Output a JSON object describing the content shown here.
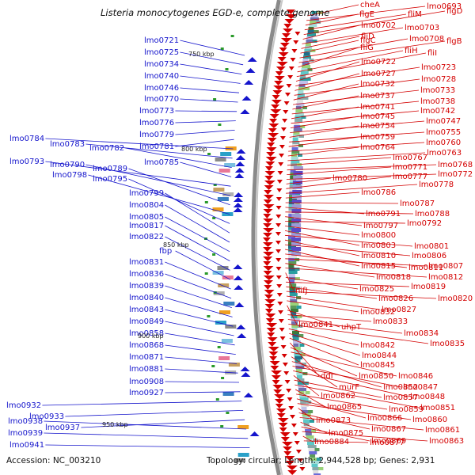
{
  "title": "Listeria monocytogenes EGD-e, complete genome",
  "footer": {
    "accession": "Accession: NC_003210",
    "topology": "Topology: circular; Length: 2,944,528 bp; Genes: 2,931"
  },
  "colors": {
    "left_gene_color": "#1515cc",
    "right_gene_color": "#d40000",
    "backbone": "#888888"
  },
  "kbp_labels": [
    "750 kbp",
    "800 kbp",
    "850 kbp",
    "900 kbp",
    "950 kbp"
  ],
  "left_genes": [
    "lmo0721",
    "lmo0725",
    "lmo0734",
    "lmo0740",
    "lmo0746",
    "lmo0770",
    "lmo0773",
    "lmo0776",
    "lmo0779",
    "lmo0781",
    "lmo0784",
    "lmo0783",
    "lmo0782",
    "lmo0785",
    "lmo0793",
    "lmo0790",
    "lmo0789",
    "lmo0798",
    "lmo0795",
    "lmo0799",
    "lmo0804",
    "lmo0805",
    "lmo0817",
    "lmo0822",
    "fbp",
    "lmo0831",
    "lmo0836",
    "lmo0839",
    "lmo0840",
    "lmo0843",
    "lmo0849",
    "lmo0858",
    "lmo0868",
    "lmo0871",
    "lmo0881",
    "lmo0908",
    "lmo0927",
    "lmo0932",
    "lmo0933",
    "lmo0937",
    "lmo0938",
    "lmo0939",
    "lmo0941"
  ],
  "right_genes": [
    "cheA",
    "lmo0693",
    "flgE",
    "fliM",
    "flgD",
    "lmo0702",
    "lmo0703",
    "fliD",
    "flgC",
    "lmo0708",
    "flgB",
    "fliG",
    "fliH",
    "fliI",
    "lmo0722",
    "lmo0723",
    "lmo0727",
    "lmo0728",
    "lmo0732",
    "lmo0733",
    "lmo0737",
    "lmo0738",
    "lmo0741",
    "lmo0742",
    "lmo0745",
    "lmo0747",
    "lmo0754",
    "lmo0755",
    "lmo0759",
    "lmo0760",
    "lmo0764",
    "lmo0763",
    "lmo0767",
    "lmo0768",
    "lmo0771",
    "lmo0772",
    "lmo0780",
    "lmo0777",
    "lmo0778",
    "lmo0786",
    "lmo0787",
    "lmo0791",
    "lmo0788",
    "lmo0797",
    "lmo0792",
    "lmo0800",
    "lmo0803",
    "lmo0801",
    "lmo0810",
    "lmo0806",
    "lmo0815",
    "lmo0811",
    "lmo0807",
    "lmo0818",
    "lmo0812",
    "nifJ",
    "lmo0825",
    "lmo0819",
    "lmo0826",
    "lmo0820",
    "lmo0827",
    "lmo0832",
    "lmo0841",
    "uhpT",
    "lmo0833",
    "lmo0834",
    "lmo0835",
    "lmo0842",
    "lmo0844",
    "lmo0845",
    "ddl",
    "lmo0850",
    "lmo0846",
    "murF",
    "lmo0852",
    "lmo0847",
    "lmo0848",
    "lmo0862",
    "lmo0857",
    "lmo0851",
    "lmo0865",
    "lmo0859",
    "lmo0866",
    "lmo0860",
    "lmo0873",
    "lmo0867",
    "lmo0861",
    "lmo0875",
    "lmo0869",
    "lmo0863",
    "lmo0884",
    "lmo0877"
  ]
}
